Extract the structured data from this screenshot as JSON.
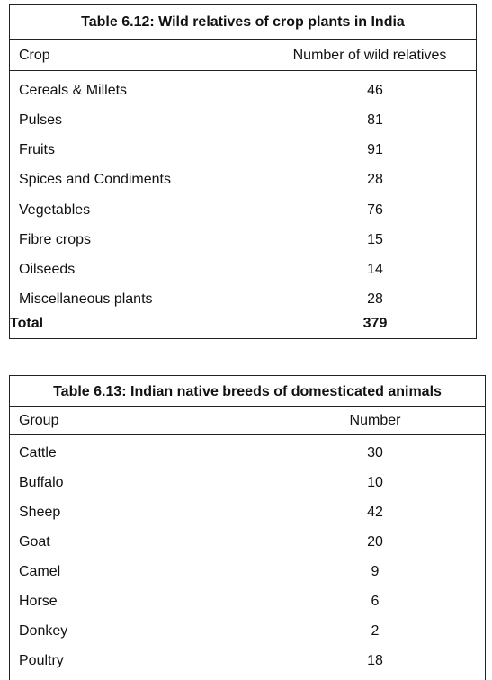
{
  "table1": {
    "title": "Table 6.12: Wild relatives of crop plants in India",
    "col_crop": "Crop",
    "col_number": "Number of wild relatives",
    "rows": [
      {
        "crop": "Cereals & Millets",
        "value": "46"
      },
      {
        "crop": "Pulses",
        "value": "81"
      },
      {
        "crop": "Fruits",
        "value": "91"
      },
      {
        "crop": "Spices and Condiments",
        "value": "28"
      },
      {
        "crop": "Vegetables",
        "value": "76"
      },
      {
        "crop": "Fibre crops",
        "value": "15"
      },
      {
        "crop": "Oilseeds",
        "value": "14"
      },
      {
        "crop": "Miscellaneous plants",
        "value": "28"
      }
    ],
    "total_label": "Total",
    "total_value": "379"
  },
  "table2": {
    "title": "Table 6.13: Indian native breeds of domesticated animals",
    "col_group": "Group",
    "col_number": "Number",
    "rows": [
      {
        "group": "Cattle",
        "value": "30"
      },
      {
        "group": "Buffalo",
        "value": "10"
      },
      {
        "group": "Sheep",
        "value": "42"
      },
      {
        "group": "Goat",
        "value": "20"
      },
      {
        "group": "Camel",
        "value": "9"
      },
      {
        "group": "Horse",
        "value": "6"
      },
      {
        "group": "Donkey",
        "value": "2"
      },
      {
        "group": "Poultry",
        "value": "18"
      }
    ]
  }
}
